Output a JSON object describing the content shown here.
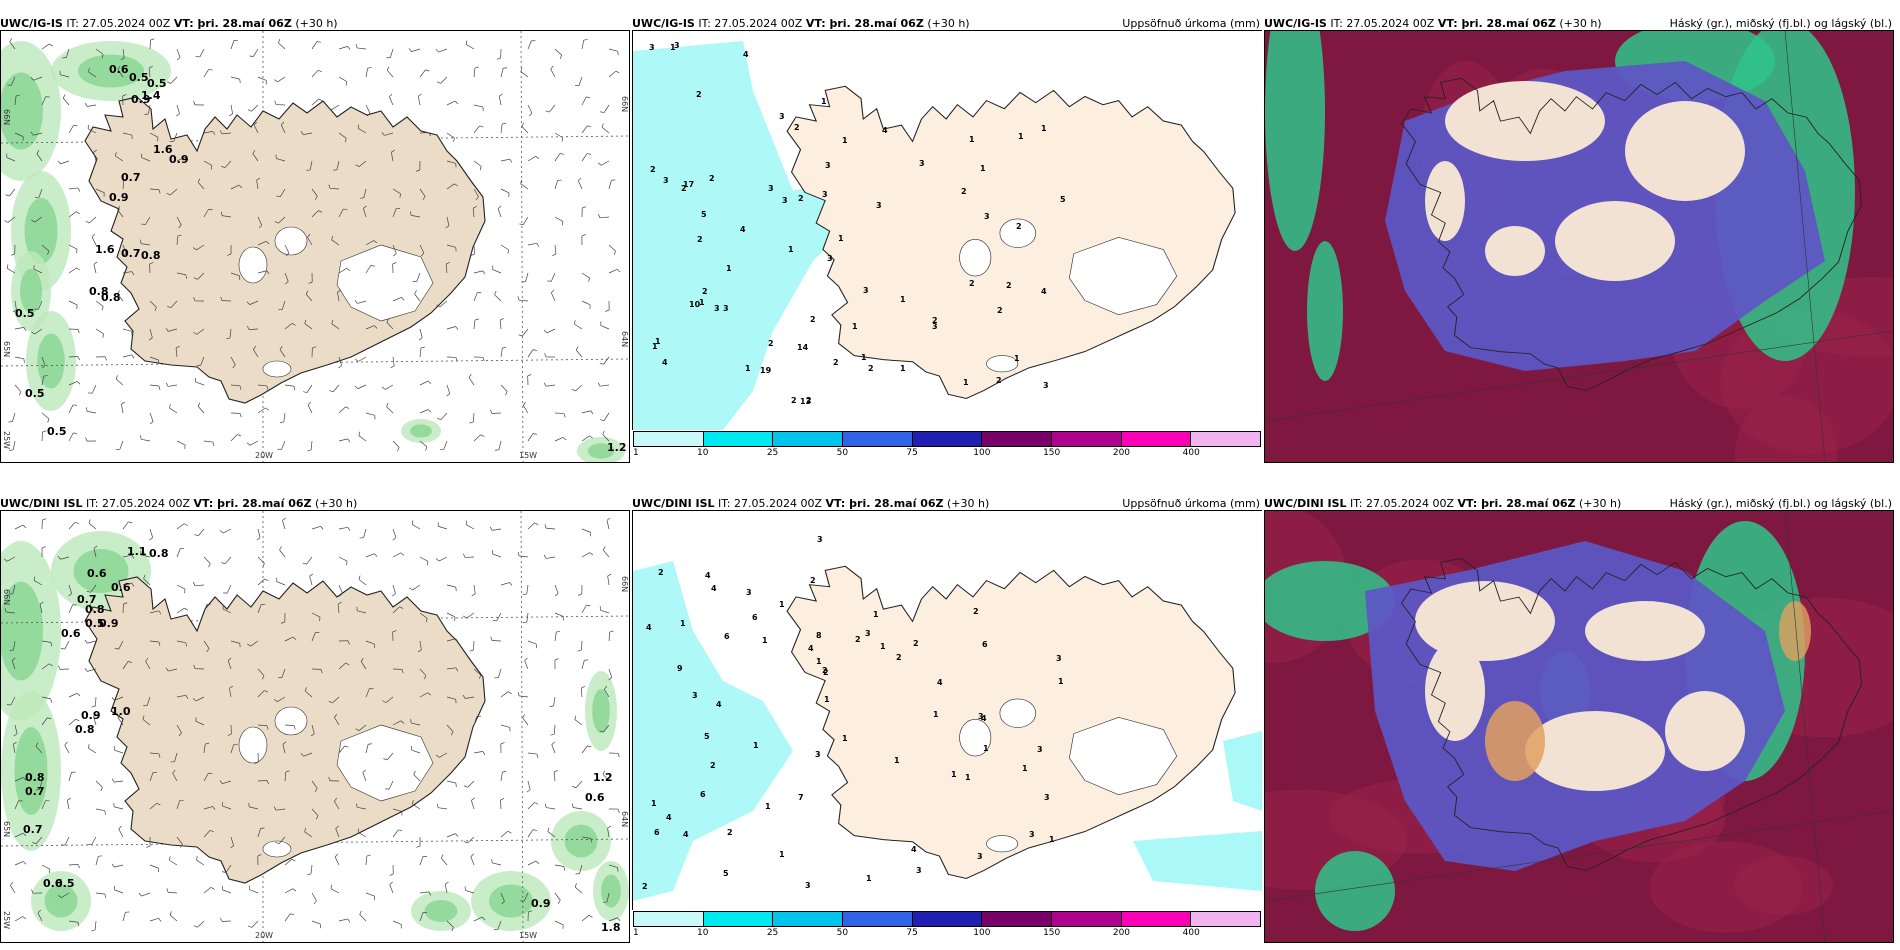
{
  "rows": [
    {
      "model": "UWC/IG-IS",
      "init": "IT: 27.05.2024 00Z",
      "valid": "VT: þri. 28.maí 06Z",
      "lead": "(+30 h)",
      "wind_numbers": [
        "0.6",
        "0.5",
        "0.5",
        "1.4",
        "1.6",
        "0.9",
        "0.7",
        "0.9",
        "1.6",
        "0.7",
        "0.8",
        "0.5",
        "0.8",
        "0.8",
        "0.5",
        "0.5",
        "1.2",
        "0.9"
      ],
      "precip_numbers": [
        "1",
        "2",
        "1",
        "1",
        "2",
        "2",
        "3",
        "2",
        "1",
        "3",
        "2",
        "4",
        "3",
        "2",
        "5",
        "2",
        "4",
        "3",
        "1",
        "2",
        "13",
        "17",
        "19",
        "10",
        "14",
        "3",
        "1",
        "1",
        "2",
        "1",
        "2",
        "3",
        "4",
        "2",
        "3",
        "2",
        "3",
        "3",
        "3",
        "1",
        "3",
        "3",
        "4",
        "2",
        "3",
        "2",
        "2",
        "3",
        "4",
        "1",
        "1",
        "2",
        "2",
        "1",
        "5",
        "3",
        "2",
        "1",
        "1",
        "1",
        "1",
        "3",
        "3",
        "2",
        "1",
        "1",
        "1",
        "2",
        "2",
        "1"
      ],
      "cloud_title": "Háský (gr.), miðský (fj.bl.) og lágský (bl.)"
    },
    {
      "model": "UWC/DINI ISL",
      "init": "IT: 27.05.2024 00Z",
      "valid": "VT: þri. 28.maí 06Z",
      "lead": "(+30 h)",
      "wind_numbers": [
        "1.1",
        "0.8",
        "0.6",
        "0.6",
        "0.7",
        "0.8",
        "0.5",
        "0.9",
        "0.6",
        "0.9",
        "1.0",
        "0.8",
        "0.8",
        "0.7",
        "0.7",
        "1.2",
        "0.6",
        "0.6",
        "0.5",
        "0.9",
        "1.8"
      ],
      "precip_numbers": [
        "1",
        "3",
        "2",
        "1",
        "6",
        "4",
        "2",
        "4",
        "6",
        "2",
        "4",
        "2",
        "5",
        "3",
        "2",
        "1",
        "1",
        "1",
        "2",
        "1",
        "9",
        "8",
        "4",
        "4",
        "6",
        "4",
        "4",
        "7",
        "1",
        "3",
        "5",
        "1",
        "3",
        "6",
        "1",
        "4",
        "2",
        "2",
        "1",
        "3",
        "2",
        "1",
        "6",
        "3",
        "4",
        "2",
        "3",
        "2",
        "1",
        "1",
        "1",
        "3",
        "3",
        "3",
        "1",
        "1",
        "1",
        "1",
        "3",
        "1",
        "1",
        "1",
        "3",
        "4",
        "3"
      ],
      "cloud_title": "Háský (gr.), miðský (fj.bl.) og lágský (bl.)"
    }
  ],
  "precip_title": "Uppsöfnuð úrkoma (mm)",
  "colorbar": {
    "ticks": [
      "1",
      "10",
      "25",
      "50",
      "75",
      "100",
      "150",
      "200",
      "400"
    ],
    "colors": [
      "#c8fafa",
      "#00e8f0",
      "#00c4ea",
      "#2f63e8",
      "#2020b0",
      "#78006a",
      "#b0008e",
      "#ff00b8",
      "#f2b4f0"
    ]
  },
  "axis_labels": {
    "lon": [
      "20W",
      "15W"
    ],
    "lat_left": [
      "66N",
      "65N",
      "25W"
    ],
    "lat_right": [
      "66N",
      "64N"
    ]
  },
  "colors": {
    "land_wind": "#eadcc6",
    "land_precip": "#fcefdf",
    "land_cloud": "#f1e2d4",
    "wind_green": "#7fd18a",
    "precip_cyan": "#aaf8f8",
    "cloud_red": "#7e1840",
    "cloud_blue": "#5d56c4",
    "cloud_green": "#2fc48a"
  }
}
